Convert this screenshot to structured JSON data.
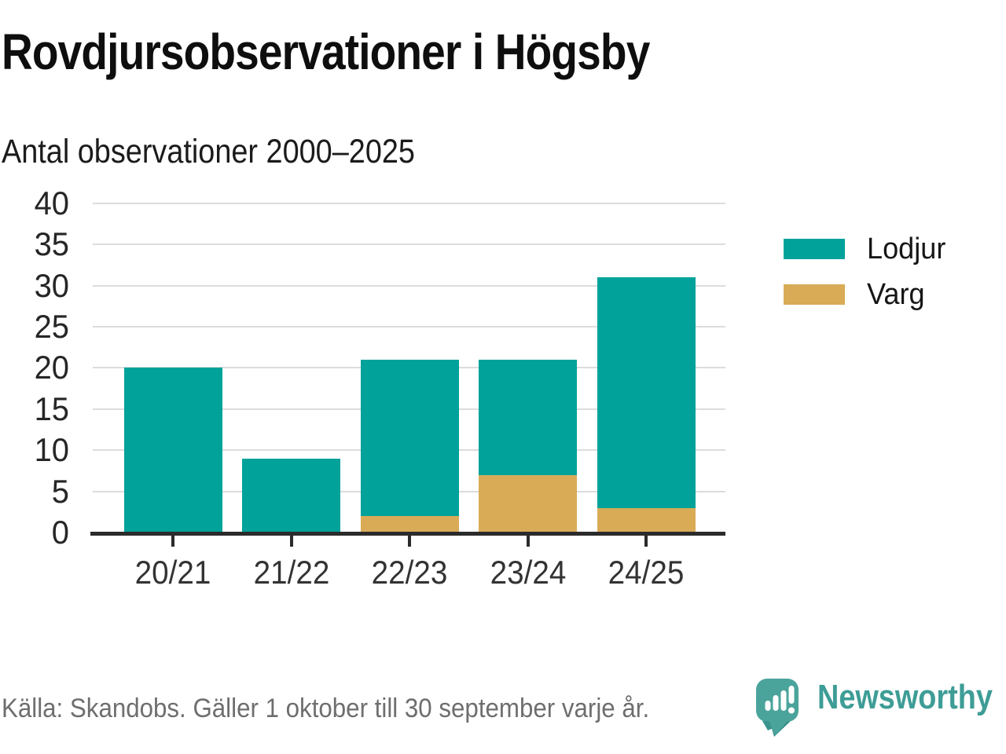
{
  "header": {
    "title": "Rovdjursobservationer i Högsby",
    "subtitle": "Antal observationer 2000–2025"
  },
  "chart_data": {
    "type": "bar",
    "stacked": true,
    "title": "Rovdjursobservationer i Högsby",
    "subtitle": "Antal observationer 2000–2025",
    "xlabel": "",
    "ylabel": "",
    "categories": [
      "20/21",
      "21/22",
      "22/23",
      "23/24",
      "24/25"
    ],
    "series": [
      {
        "name": "Lodjur",
        "color": "#00A29A",
        "values": [
          20,
          9,
          19,
          14,
          28
        ]
      },
      {
        "name": "Varg",
        "color": "#D9AB57",
        "values": [
          0,
          0,
          2,
          7,
          3
        ]
      }
    ],
    "stack_order_bottom_to_top": [
      "Varg",
      "Lodjur"
    ],
    "totals": [
      20,
      9,
      21,
      21,
      31
    ],
    "ylim": [
      0,
      40
    ],
    "yticks": [
      0,
      5,
      10,
      15,
      20,
      25,
      30,
      35,
      40
    ],
    "grid": true,
    "legend_position": "right"
  },
  "legend": {
    "items": [
      {
        "label": "Lodjur",
        "color": "#00A29A"
      },
      {
        "label": "Varg",
        "color": "#D9AB57"
      }
    ]
  },
  "footer": {
    "source": "Källa: Skandobs. Gäller 1 oktober till 30 september varje år.",
    "brand": "Newsworthy"
  },
  "colors": {
    "lodjur": "#00A29A",
    "varg": "#D9AB57",
    "axis": "#2b2b2b",
    "gridline": "#dcdcdc",
    "brand_teal": "#3e9d96",
    "logo_square": "#4BA49C",
    "logo_tail": "#2F8B84",
    "source_gray": "#6e6e6e"
  }
}
